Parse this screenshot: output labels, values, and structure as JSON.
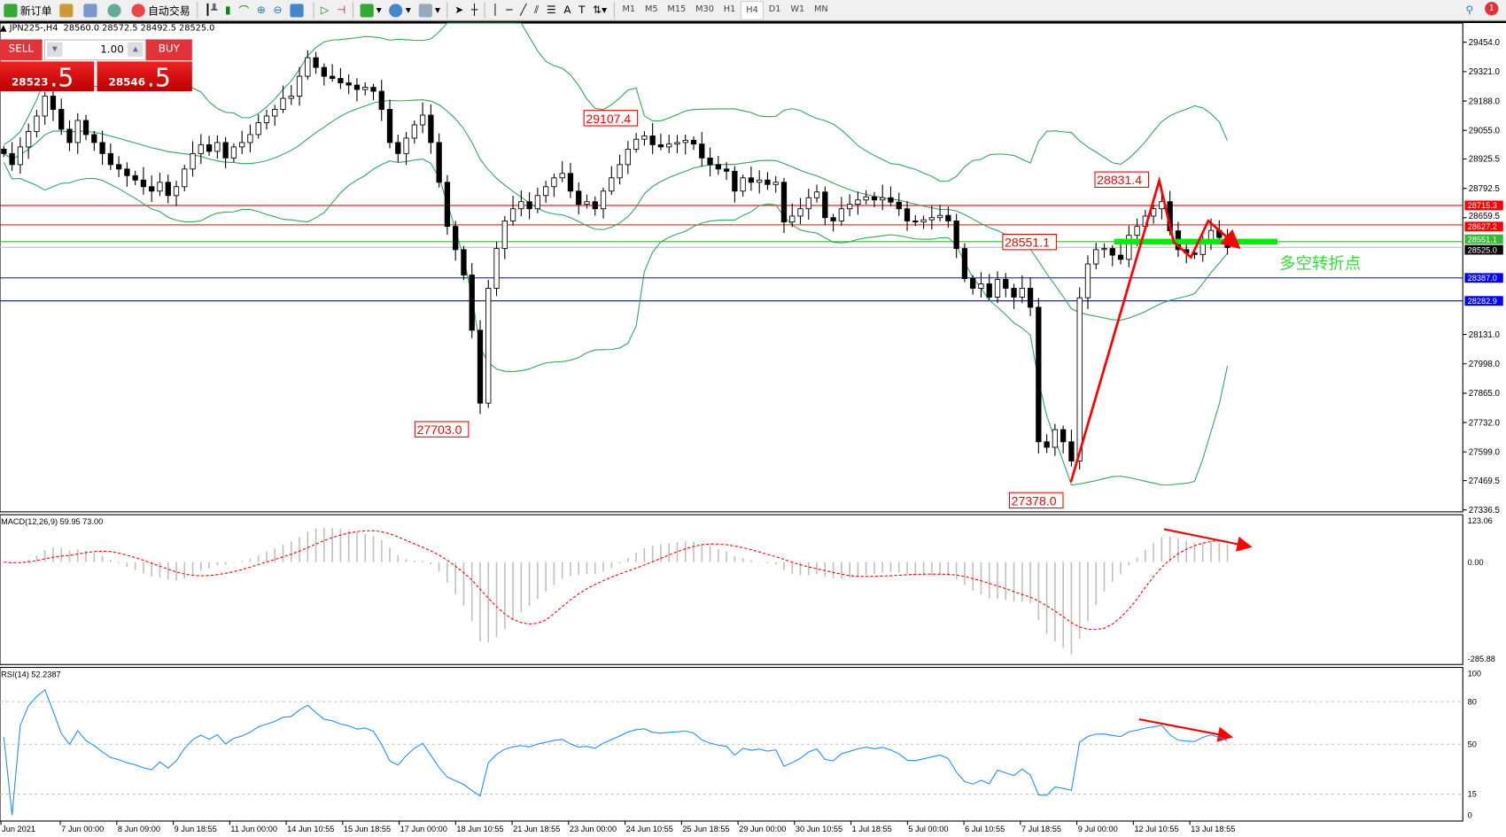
{
  "toolbar": {
    "new_order": "新订单",
    "auto_trading": "自动交易",
    "timeframes": [
      "M1",
      "M5",
      "M15",
      "M30",
      "H1",
      "H4",
      "D1",
      "W1",
      "MN"
    ],
    "active_timeframe": "H4",
    "notification_count": "1"
  },
  "chart": {
    "header": "JPN225-,H4  28560.0 28572.5 28492.5 28525.0",
    "symbol": "JPN225-",
    "timeframe": "H4",
    "ohlc": {
      "open": 28560.0,
      "high": 28572.5,
      "low": 28492.5,
      "close": 28525.0
    }
  },
  "one_click": {
    "sell_label": "SELL",
    "buy_label": "BUY",
    "volume": "1.00",
    "sell_price_main": "28523",
    "sell_price_big": ".5",
    "buy_price_main": "28546",
    "buy_price_big": ".5"
  },
  "chart_data": {
    "type": "candlestick",
    "price_axis_ticks": [
      "29454.0",
      "29321.0",
      "29188.0",
      "29055.0",
      "28925.5",
      "28792.5",
      "28659.5",
      "28131.0",
      "27998.0",
      "27865.0",
      "27732.0",
      "27599.0",
      "27469.5",
      "27336.5"
    ],
    "price_range": [
      27336.5,
      29454.0
    ],
    "time_axis_ticks": [
      "Jun 2021",
      "7 Jun 00:00",
      "8 Jun 09:00",
      "9 Jun 18:55",
      "11 Jun 00:00",
      "14 Jun 10:55",
      "15 Jun 18:55",
      "17 Jun 00:00",
      "18 Jun 10:55",
      "21 Jun 18:55",
      "23 Jun 00:00",
      "24 Jun 10:55",
      "25 Jun 18:55",
      "29 Jun 00:00",
      "30 Jun 10:55",
      "1 Jul 18:55",
      "5 Jul 00:00",
      "6 Jul 10:55",
      "7 Jul 18:55",
      "9 Jul 00:00",
      "12 Jul 10:55",
      "13 Jul 18:55"
    ],
    "closes": [
      28950,
      28900,
      28980,
      29050,
      29120,
      29210,
      29150,
      29060,
      29000,
      29100,
      29036,
      29000,
      28950,
      28900,
      28880,
      28850,
      28830,
      28800,
      28780,
      28820,
      28760,
      28800,
      28880,
      28950,
      28990,
      28960,
      29000,
      28930,
      28980,
      29000,
      29036,
      29090,
      29120,
      29150,
      29200,
      29210,
      29300,
      29384,
      29340,
      29300,
      29290,
      29270,
      29260,
      29240,
      29250,
      29232,
      29150,
      29000,
      28950,
      29020,
      29080,
      29124,
      29000,
      28820,
      28620,
      28515,
      28400,
      28150,
      27820,
      28340,
      28520,
      28645,
      28700,
      28732,
      28700,
      28760,
      28800,
      28840,
      28860,
      28780,
      28720,
      28732,
      28700,
      28780,
      28840,
      28900,
      28970,
      29015,
      29030,
      28990,
      28980,
      28993,
      29000,
      29010,
      28993,
      28930,
      28900,
      28880,
      28870,
      28780,
      28840,
      28820,
      28830,
      28810,
      28820,
      28640,
      28667,
      28700,
      28750,
      28776,
      28660,
      28645,
      28700,
      28720,
      28740,
      28754,
      28740,
      28750,
      28730,
      28700,
      28645,
      28640,
      28650,
      28660,
      28670,
      28645,
      28520,
      28384,
      28340,
      28360,
      28300,
      28380,
      28340,
      28300,
      28340,
      28254,
      27645,
      27620,
      27700,
      27645,
      27558,
      28297,
      28450,
      28515,
      28520,
      28490,
      28471,
      28580,
      28620,
      28667,
      28700,
      28732,
      28600,
      28515,
      28500,
      28493,
      28560,
      28602,
      28570,
      28525
    ],
    "indicators": {
      "bollinger": "Bands",
      "macd": {
        "label": "MACD(12,26,9) 59.95 73.00",
        "axis": [
          "123.06",
          "0.00",
          "-285.88"
        ],
        "range": [
          -285.88,
          123.06
        ]
      },
      "rsi": {
        "label": "RSI(14) 52.2387",
        "axis": [
          "100",
          "80",
          "50",
          "15",
          "0"
        ],
        "levels": [
          80,
          50,
          15
        ]
      }
    },
    "horizontal_lines": [
      {
        "price": "28715.3",
        "color": "#ff0000"
      },
      {
        "price": "28627.2",
        "color": "#ff0000"
      },
      {
        "price": "28551.1",
        "color": "#33bb33"
      },
      {
        "price": "28525.0",
        "color": "#c0c0c0"
      },
      {
        "price": "28387.0",
        "color": "#0000ff"
      },
      {
        "price": "28282.9",
        "color": "#0000ff"
      }
    ],
    "annotations": {
      "high_1": "29107.4",
      "low_1": "27703.0",
      "high_2": "28831.4",
      "pivot": "28551.1",
      "low_2": "27378.0",
      "turning_point": "多空转折点"
    },
    "colors": {
      "bull": "#ffffff",
      "bear": "#000000",
      "bands": "#2ea85a",
      "macd_hist": "#c0c0c0",
      "macd_signal": "#ff0000",
      "rsi": "#1e90ff",
      "arrow": "#ff0000",
      "pivot_bar": "#00ee00"
    }
  }
}
